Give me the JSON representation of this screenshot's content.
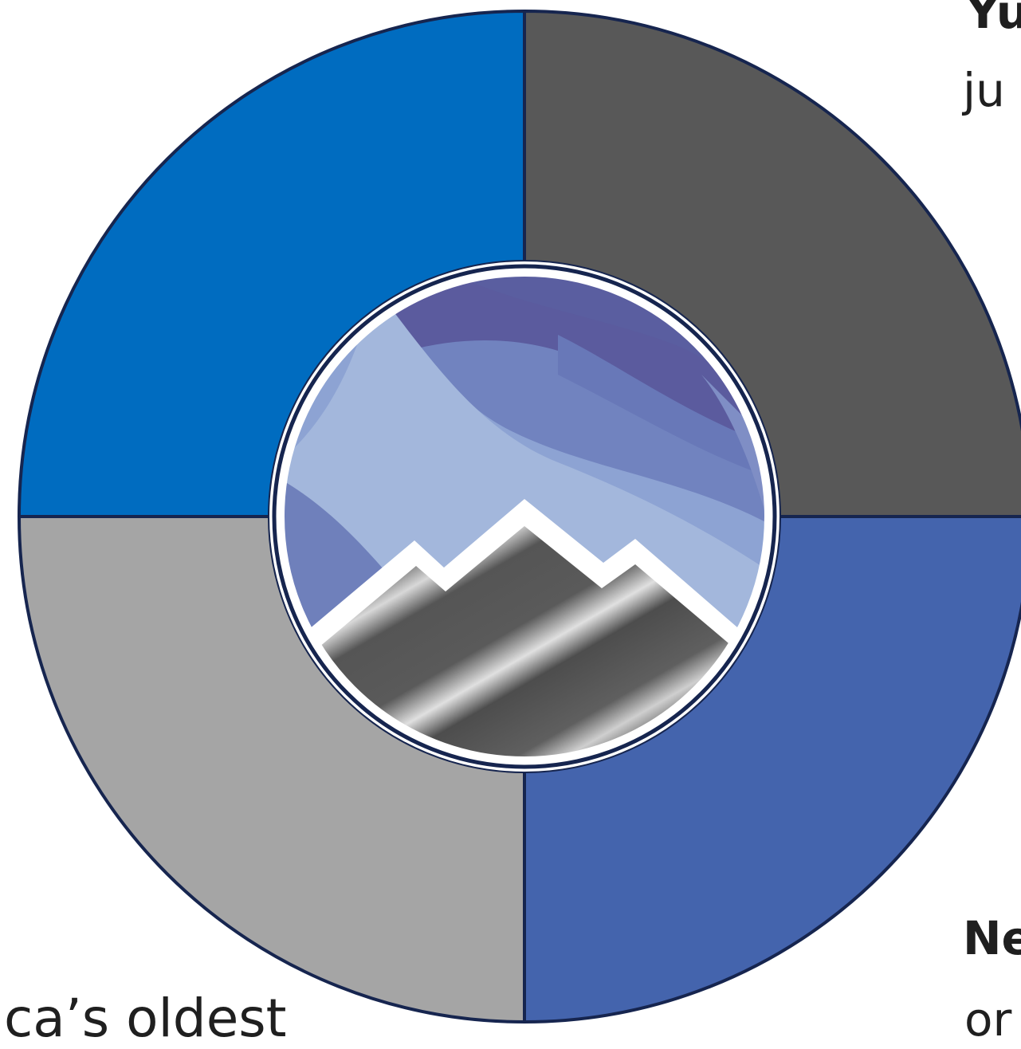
{
  "colors": {
    "top_left": "#006cc0",
    "top_right": "#585858",
    "bottom_right": "#4464ad",
    "bottom_left": "#a5a5a5",
    "outline": "#16254f"
  },
  "logo": {
    "name": "mountain-aurora-logo"
  },
  "text_fragments": {
    "top_right_bold": "Yu",
    "top_right_line": "ju",
    "bottom_right_bold": "Ne",
    "bottom_right_line": "or",
    "bottom_left_line": "ca’s oldest"
  }
}
